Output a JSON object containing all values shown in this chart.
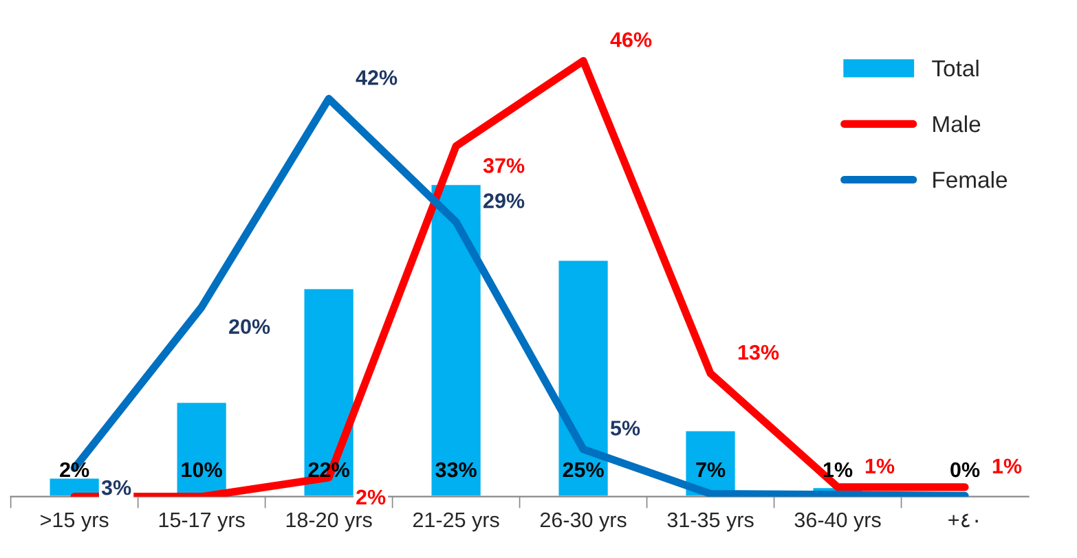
{
  "chart_data": {
    "type": "bar",
    "categories": [
      ">15 yrs",
      "15-17 yrs",
      "18-20 yrs",
      "21-25 yrs",
      "26-30 yrs",
      "31-35 yrs",
      "36-40 yrs",
      "+٤٠"
    ],
    "legend": "top right",
    "series": [
      {
        "name": "Total",
        "color": "#00b0f0",
        "values": [
          2,
          10,
          22,
          33,
          25,
          7,
          1,
          0.2
        ],
        "value_labels": [
          "2%",
          "10%",
          "22%",
          "33%",
          "25%",
          "7%",
          "1%",
          "0%"
        ]
      },
      {
        "name": "Male",
        "type": "line",
        "color": "#ff0000",
        "values": [
          0,
          0,
          2,
          37,
          46,
          13,
          1,
          1
        ],
        "value_labels": [
          null,
          null,
          "2%",
          "37%",
          "46%",
          "13%",
          "1%",
          "1%"
        ]
      },
      {
        "name": "Female",
        "type": "line",
        "color": "#0070c0",
        "values": [
          3,
          20,
          42,
          29,
          5,
          0.3,
          0.2,
          0.1
        ],
        "value_labels": [
          "3%",
          "20%",
          "42%",
          "29%",
          "5%",
          null,
          null,
          null
        ]
      }
    ]
  }
}
